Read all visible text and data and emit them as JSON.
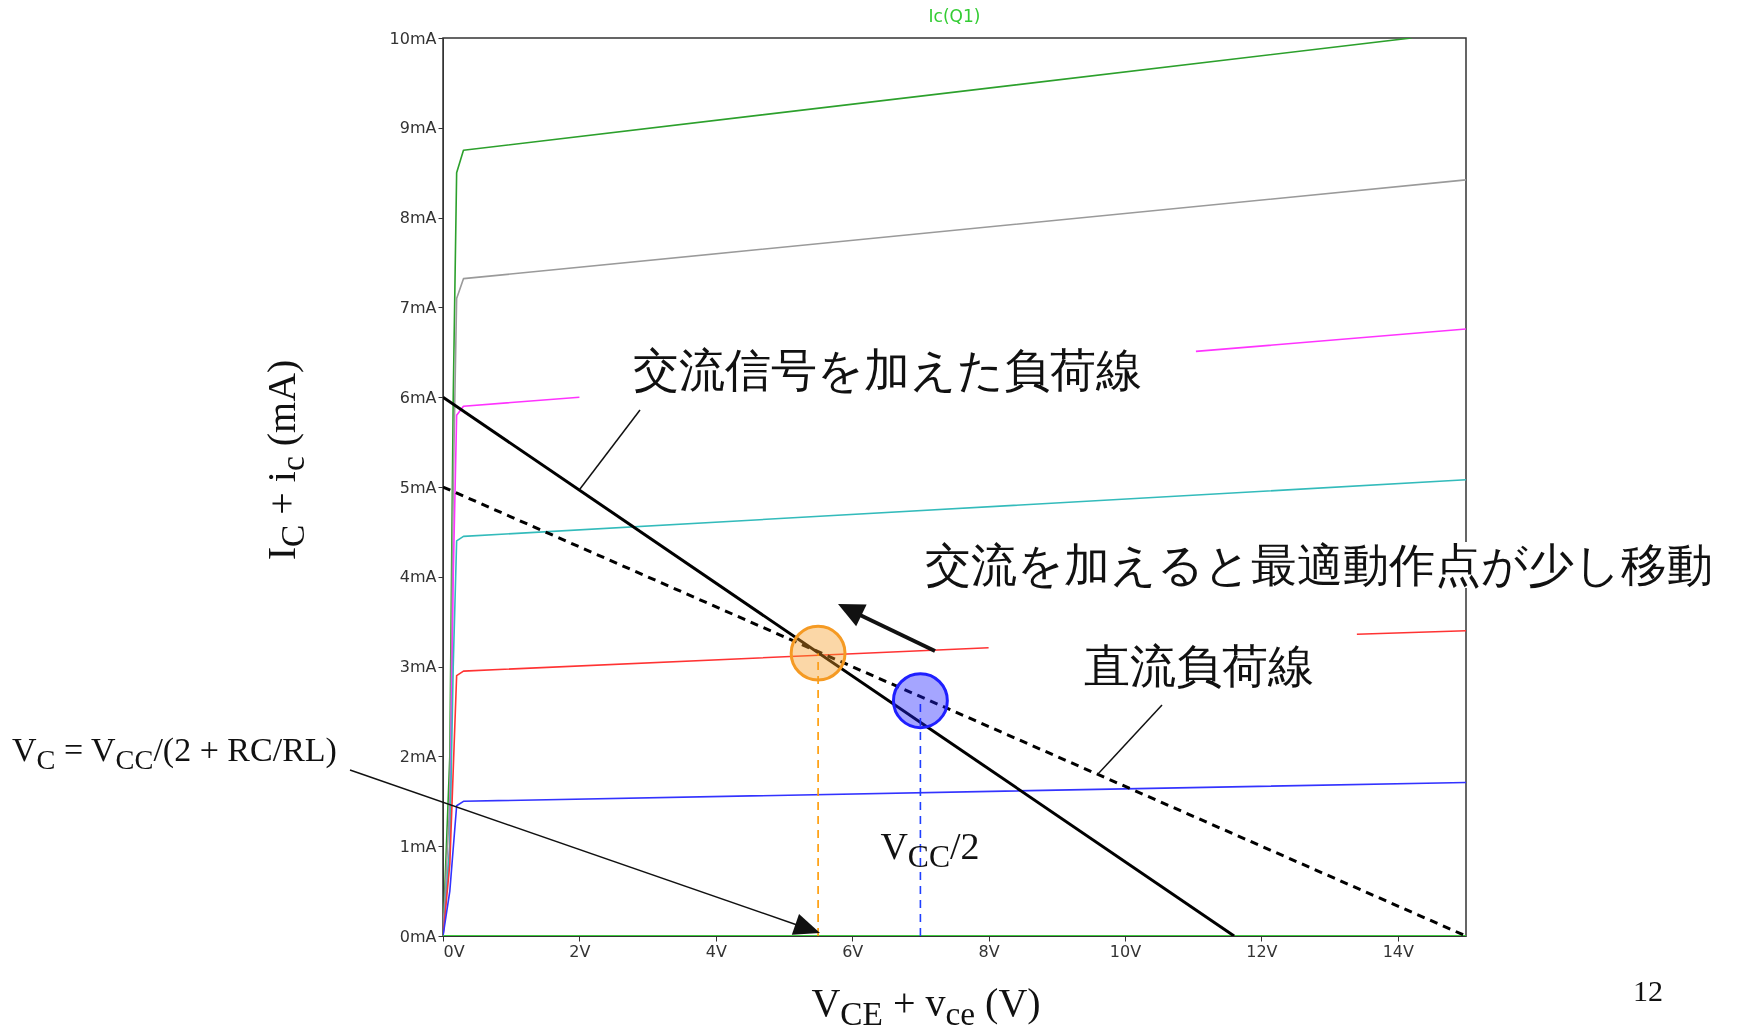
{
  "chart_data": {
    "type": "line",
    "title": "Ic(Q1)",
    "xlabel": "V$_{CE}$ + v$_{ce}$ (V)",
    "ylabel": "I$_{C}$ + i$_{c}$ (mA)",
    "xlim": [
      0,
      15
    ],
    "ylim": [
      0,
      10
    ],
    "xticks": [
      {
        "value": 0,
        "label": "0V"
      },
      {
        "value": 2,
        "label": "2V"
      },
      {
        "value": 4,
        "label": "4V"
      },
      {
        "value": 6,
        "label": "6V"
      },
      {
        "value": 8,
        "label": "8V"
      },
      {
        "value": 10,
        "label": "10V"
      },
      {
        "value": 12,
        "label": "12V"
      },
      {
        "value": 14,
        "label": "14V"
      }
    ],
    "yticks": [
      {
        "value": 0,
        "label": "0mA"
      },
      {
        "value": 1,
        "label": "1mA"
      },
      {
        "value": 2,
        "label": "2mA"
      },
      {
        "value": 3,
        "label": "3mA"
      },
      {
        "value": 4,
        "label": "4mA"
      },
      {
        "value": 5,
        "label": "5mA"
      },
      {
        "value": 6,
        "label": "6mA"
      },
      {
        "value": 7,
        "label": "7mA"
      },
      {
        "value": 8,
        "label": "8mA"
      },
      {
        "value": 9,
        "label": "9mA"
      },
      {
        "value": 10,
        "label": "10mA"
      }
    ],
    "grid": false,
    "line_style": "solid",
    "series": [
      {
        "color": "#2ca02c",
        "x": [
          0,
          0.1,
          0.15,
          0.2,
          0.3,
          14.2
        ],
        "values": [
          0,
          2,
          6,
          8.5,
          8.75,
          10
        ]
      },
      {
        "color": "#9a9a9a",
        "x": [
          0,
          0.1,
          0.15,
          0.2,
          0.3,
          15
        ],
        "values": [
          0,
          1.5,
          5,
          7.1,
          7.32,
          8.42
        ]
      },
      {
        "color": "#ff33ff",
        "x": [
          0,
          0.1,
          0.15,
          0.2,
          0.3,
          2,
          6,
          11.04,
          15
        ],
        "values": [
          0,
          1,
          4,
          5.8,
          5.9,
          6,
          null,
          6.51,
          6.76
        ]
      },
      {
        "color": "#33bbbb",
        "x": [
          0,
          0.1,
          0.15,
          0.2,
          0.3,
          15
        ],
        "values": [
          0,
          1,
          3,
          4.4,
          4.45,
          5.08
        ]
      },
      {
        "color": "#ff3333",
        "x": [
          0,
          0.1,
          0.2,
          0.3,
          8,
          10,
          13.4,
          15
        ],
        "values": [
          0,
          0.8,
          2.9,
          2.95,
          3.21,
          null,
          3.36,
          3.4
        ]
      },
      {
        "color": "#3333ff",
        "x": [
          0,
          0.1,
          0.2,
          0.3,
          15
        ],
        "values": [
          0,
          0.5,
          1.45,
          1.5,
          1.71
        ]
      },
      {
        "color": "#33ee33",
        "x": [
          0,
          15
        ],
        "values": [
          0,
          0
        ]
      },
      {
        "color": "#000000",
        "x": [
          0,
          11.6
        ],
        "values": [
          6,
          0
        ]
      },
      {
        "color": "#000000",
        "line_style": "dashed",
        "x": [
          0,
          15
        ],
        "values": [
          5,
          0
        ]
      },
      {
        "color": "#ff9900",
        "line_style": "dashed",
        "x": [
          5.5,
          5.5
        ],
        "values": [
          0,
          3.15
        ]
      },
      {
        "color": "#1f3fff",
        "line_style": "dashed",
        "x": [
          7,
          7
        ],
        "values": [
          0,
          2.62
        ]
      },
      {
        "type": "scatter",
        "marker": "circle",
        "color": "#f59a23",
        "x": [
          5.5
        ],
        "values": [
          3.15
        ]
      },
      {
        "type": "scatter",
        "marker": "circle",
        "color": "#1f1fff",
        "x": [
          7
        ],
        "values": [
          2.62
        ]
      }
    ],
    "annotations": [
      {
        "text": "交流信号を加えた負荷線",
        "x": 2,
        "y": 4.97
      },
      "交流を加えると最適動作点が少し移動",
      {
        "text": "直流負荷線",
        "x": 9.6,
        "y": 1.8
      },
      "V$_{C}$ = V$_{CC}$/(2 + RC/RL)",
      "V$_{CC}$/2",
      "12"
    ]
  }
}
